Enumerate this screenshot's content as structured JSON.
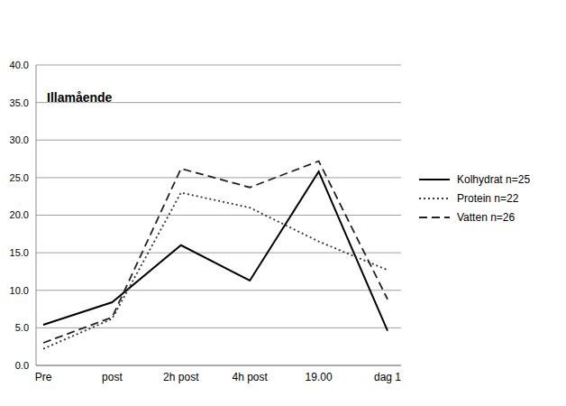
{
  "chart_data": {
    "type": "line",
    "title": "Illamående",
    "categories": [
      "Pre",
      "post",
      "2h post",
      "4h post",
      "19.00",
      "dag 1"
    ],
    "series": [
      {
        "name": "Kolhydrat n=25",
        "color": "#000000",
        "line_style": "solid",
        "values": [
          5.4,
          8.4,
          16.0,
          11.3,
          25.8,
          4.6
        ]
      },
      {
        "name": "Protein n=22",
        "color": "#333333",
        "line_style": "dotted",
        "values": [
          2.2,
          6.2,
          23.0,
          21.0,
          16.5,
          12.7
        ]
      },
      {
        "name": "Vatten n=26",
        "color": "#222222",
        "line_style": "dashed",
        "values": [
          3.0,
          6.4,
          26.2,
          23.7,
          27.2,
          8.8
        ]
      }
    ],
    "ylim": [
      0,
      40
    ],
    "yticks": [
      {
        "value": 0,
        "label": "0.0"
      },
      {
        "value": 5,
        "label": "5.0"
      },
      {
        "value": 10,
        "label": "10.0"
      },
      {
        "value": 15,
        "label": "15.0"
      },
      {
        "value": 20,
        "label": "20.0"
      },
      {
        "value": 25,
        "label": "25.0"
      },
      {
        "value": 30,
        "label": "30.0"
      },
      {
        "value": 35,
        "label": "35.0"
      },
      {
        "value": 40,
        "label": "40.0"
      }
    ],
    "grid": true,
    "legend": "right"
  }
}
